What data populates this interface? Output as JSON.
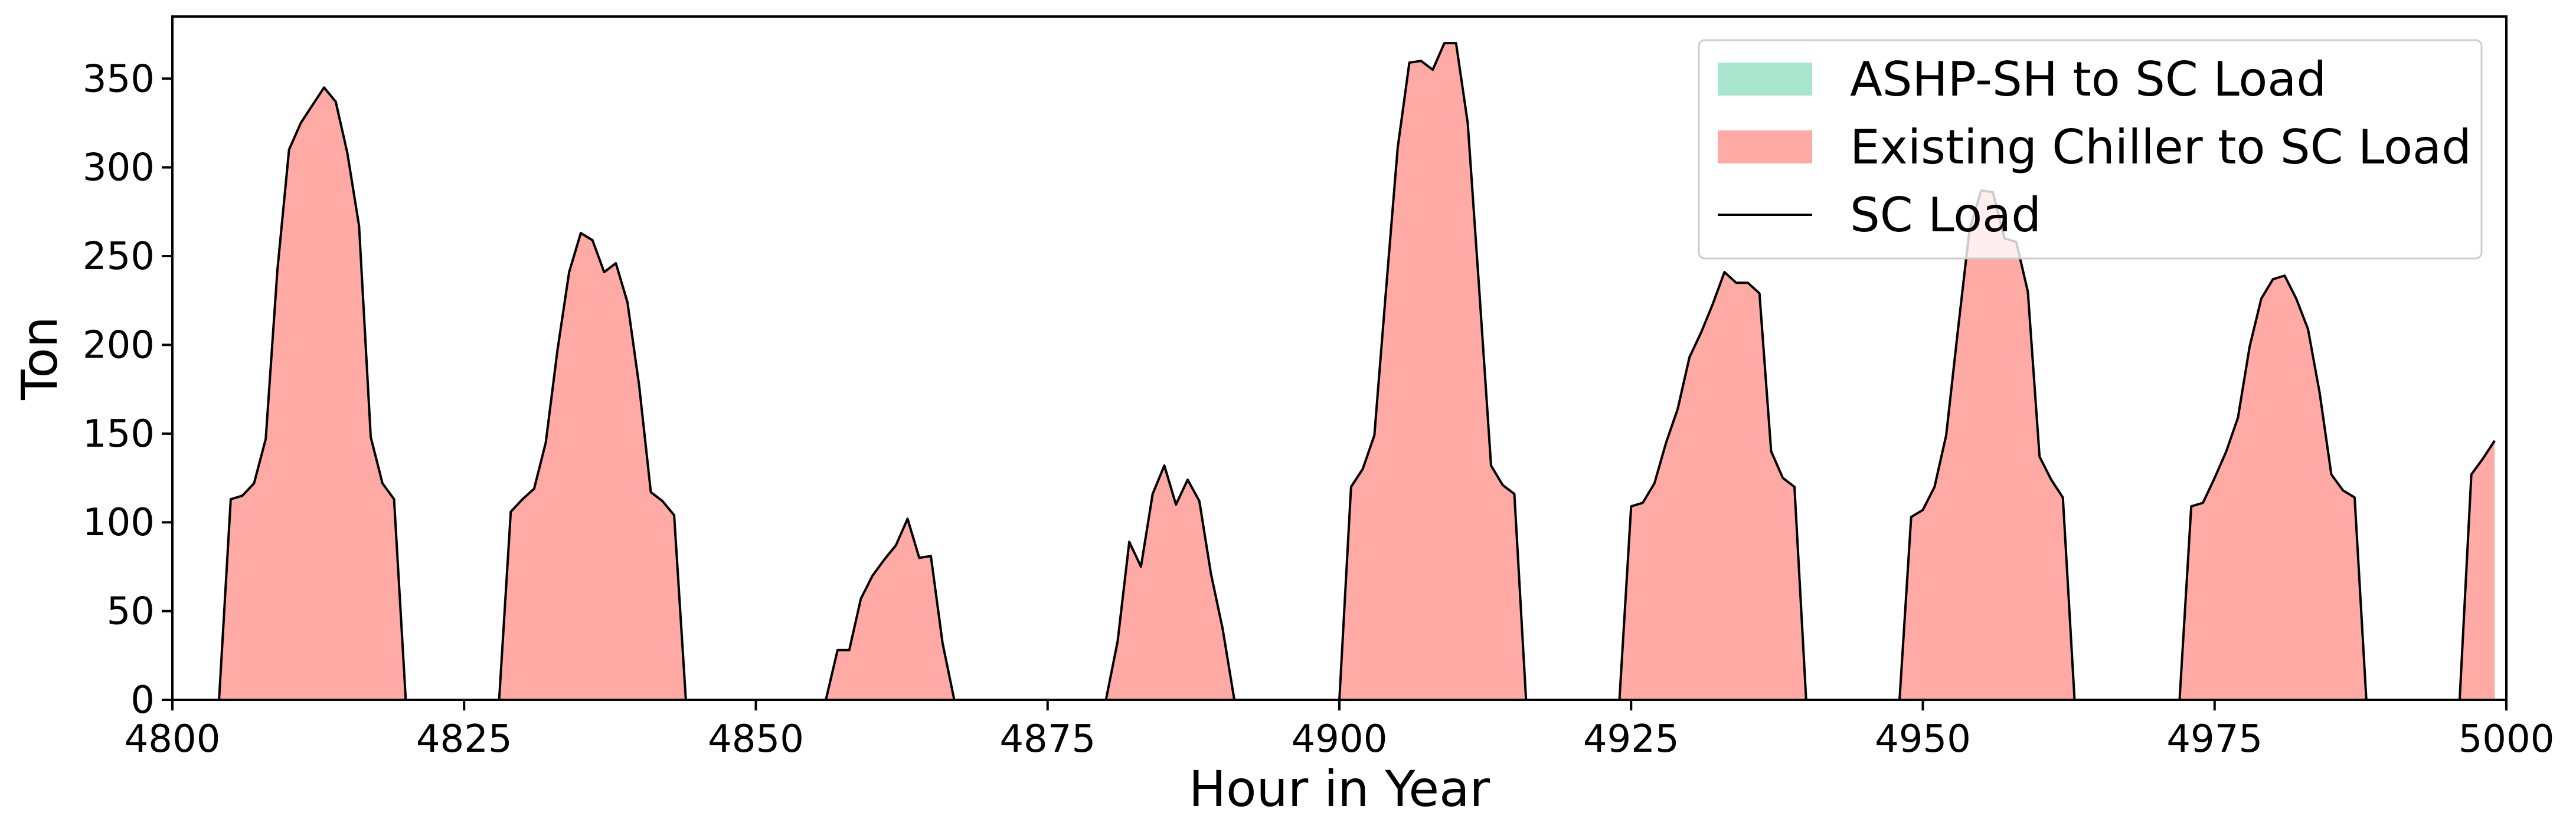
{
  "chart_data": {
    "type": "area",
    "xlabel": "Hour in Year",
    "ylabel": "Ton",
    "xlim": [
      4800,
      5000
    ],
    "ylim": [
      0,
      385
    ],
    "xticks": [
      4800,
      4825,
      4850,
      4875,
      4900,
      4925,
      4950,
      4975,
      5000
    ],
    "yticks": [
      0,
      50,
      100,
      150,
      200,
      250,
      300,
      350
    ],
    "legend_position": "top-right",
    "series": [
      {
        "name": "ASHP-SH to SC Load",
        "kind": "area",
        "color": "#a8e6cf"
      },
      {
        "name": "Existing Chiller to SC Load",
        "kind": "area",
        "color": "#ffaaa5"
      },
      {
        "name": "SC Load",
        "kind": "line",
        "color": "#000000"
      }
    ],
    "x": [
      4800,
      4804,
      4805,
      4806,
      4807,
      4808,
      4809,
      4810,
      4811,
      4812,
      4813,
      4814,
      4815,
      4816,
      4817,
      4818,
      4819,
      4820,
      4828,
      4829,
      4830,
      4831,
      4832,
      4833,
      4834,
      4835,
      4836,
      4837,
      4838,
      4839,
      4840,
      4841,
      4842,
      4843,
      4844,
      4856,
      4857,
      4858,
      4859,
      4860,
      4861,
      4862,
      4863,
      4864,
      4865,
      4866,
      4867,
      4880,
      4881,
      4882,
      4883,
      4884,
      4885,
      4886,
      4887,
      4888,
      4889,
      4890,
      4891,
      4900,
      4901,
      4902,
      4903,
      4904,
      4905,
      4906,
      4907,
      4908,
      4909,
      4910,
      4911,
      4912,
      4913,
      4914,
      4915,
      4916,
      4924,
      4925,
      4926,
      4927,
      4928,
      4929,
      4930,
      4931,
      4932,
      4933,
      4934,
      4935,
      4936,
      4937,
      4938,
      4939,
      4940,
      4948,
      4949,
      4950,
      4951,
      4952,
      4953,
      4954,
      4955,
      4956,
      4957,
      4958,
      4959,
      4960,
      4961,
      4962,
      4963,
      4964,
      4972,
      4973,
      4974,
      4975,
      4976,
      4977,
      4978,
      4979,
      4980,
      4981,
      4982,
      4983,
      4984,
      4985,
      4986,
      4987,
      4988,
      4996,
      4997,
      4998,
      4999
    ],
    "sc_load": [
      0,
      0,
      113,
      115,
      122,
      147,
      242,
      310,
      325,
      335,
      345,
      337,
      308,
      267,
      148,
      122,
      113,
      0,
      0,
      106,
      113,
      119,
      145,
      197,
      241,
      263,
      259,
      241,
      246,
      224,
      177,
      117,
      112,
      104,
      0,
      0,
      28,
      28,
      57,
      70,
      79,
      87,
      102,
      80,
      81,
      32,
      0,
      0,
      33,
      89,
      75,
      116,
      132,
      110,
      124,
      112,
      71,
      40,
      0,
      0,
      120,
      130,
      149,
      231,
      311,
      359,
      360,
      355,
      370,
      370,
      325,
      230,
      132,
      121,
      116,
      0,
      0,
      109,
      111,
      122,
      145,
      164,
      193,
      207,
      223,
      241,
      235,
      235,
      229,
      140,
      125,
      120,
      0,
      0,
      103,
      107,
      120,
      149,
      208,
      265,
      287,
      286,
      260,
      258,
      230,
      137,
      124,
      114,
      0,
      0,
      0,
      109,
      111,
      125,
      140,
      159,
      199,
      226,
      237,
      239,
      226,
      209,
      173,
      127,
      118,
      114,
      0,
      0,
      127,
      136,
      146
    ]
  }
}
